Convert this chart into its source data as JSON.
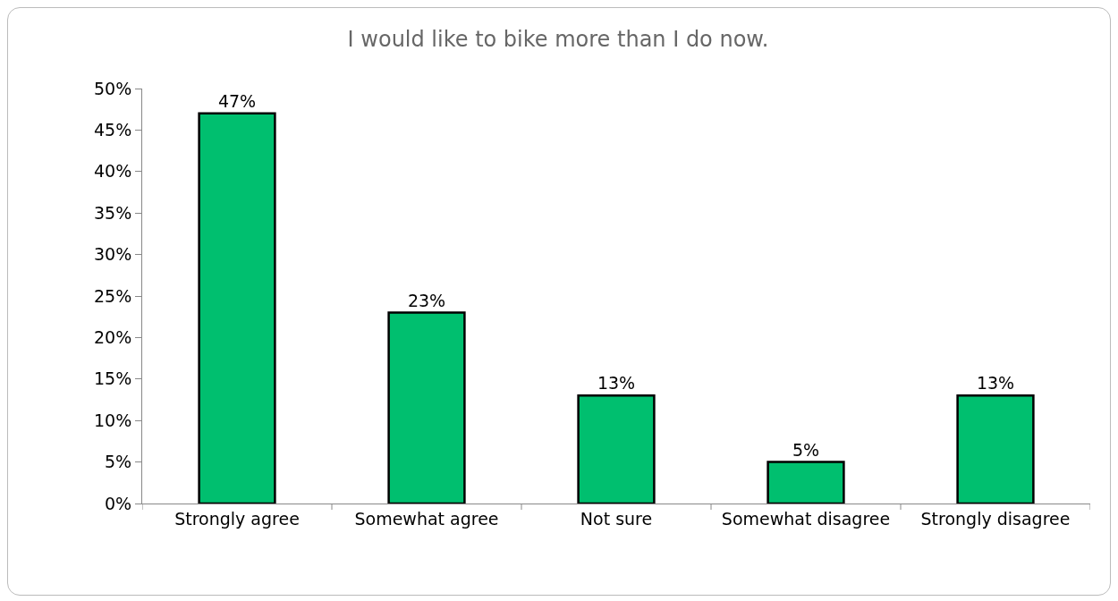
{
  "chart_data": {
    "type": "bar",
    "title": "I would like to bike more than I do now.",
    "categories": [
      "Strongly agree",
      "Somewhat agree",
      "Not sure",
      "Somewhat disagree",
      "Strongly disagree"
    ],
    "values": [
      47,
      23,
      13,
      5,
      13
    ],
    "value_labels": [
      "47%",
      "23%",
      "13%",
      "5%",
      "13%"
    ],
    "color": "#00bf6f",
    "ylim": [
      0,
      50
    ],
    "yticks": [
      {
        "value": 0,
        "label": "0%"
      },
      {
        "value": 5,
        "label": "5%"
      },
      {
        "value": 10,
        "label": "10%"
      },
      {
        "value": 15,
        "label": "15%"
      },
      {
        "value": 20,
        "label": "20%"
      },
      {
        "value": 25,
        "label": "25%"
      },
      {
        "value": 30,
        "label": "30%"
      },
      {
        "value": 35,
        "label": "35%"
      },
      {
        "value": 40,
        "label": "40%"
      },
      {
        "value": 45,
        "label": "45%"
      },
      {
        "value": 50,
        "label": "50%"
      }
    ],
    "grid": false
  }
}
